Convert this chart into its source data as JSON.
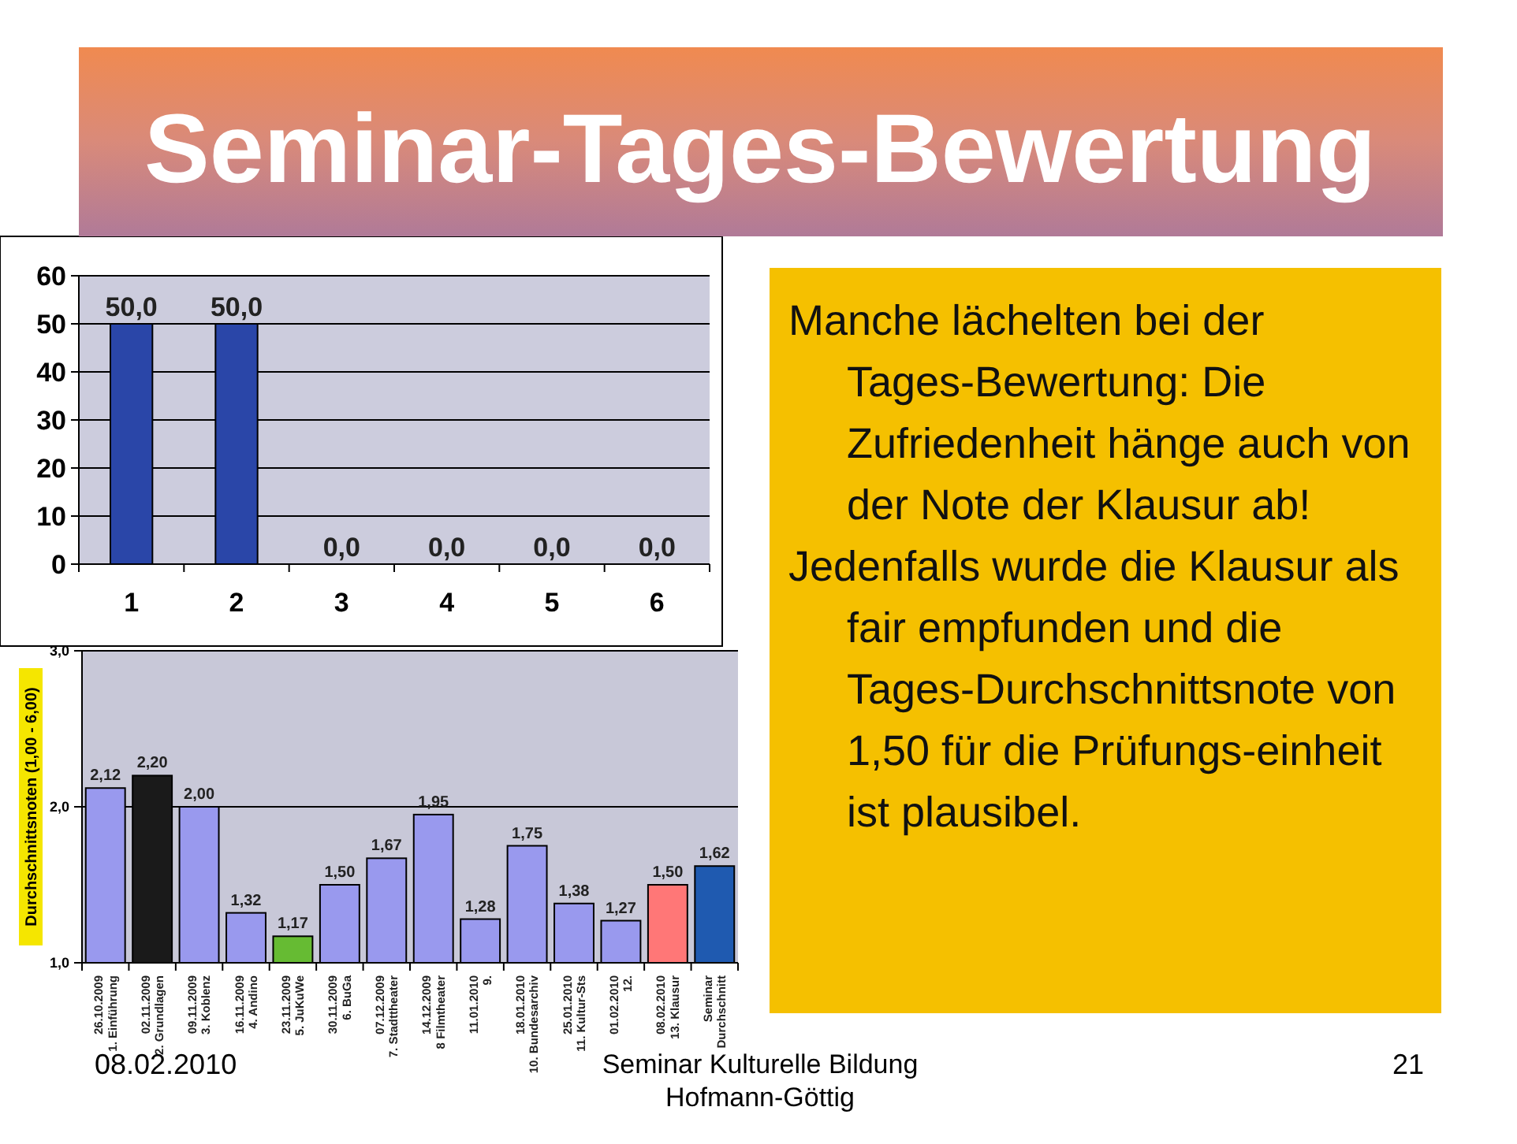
{
  "chart_data": [
    {
      "type": "bar",
      "categories": [
        "1",
        "2",
        "3",
        "4",
        "5",
        "6"
      ],
      "values": [
        50,
        50,
        0,
        0,
        0,
        0
      ],
      "color": "#2a46a8",
      "value_labels": [
        "50,0",
        "50,0",
        "0,0",
        "0,0",
        "0,0",
        "0,0"
      ],
      "ylim": [
        0,
        60
      ],
      "yticks": [
        0,
        10,
        20,
        30,
        40,
        50,
        60
      ],
      "grid": "y"
    },
    {
      "type": "bar",
      "ylabel": "Durchschnittsnoten (1,00 - 6,00)",
      "categories": [
        "26.10.2009\n1. Einführung",
        "02.11.2009\n2. Grundlagen",
        "09.11.2009\n3. Koblenz",
        "16.11.2009\n4. Andino",
        "23.11.2009\n5. JuKuWe",
        "30.11.2009\n6. BuGa",
        "07.12.2009\n7. Stadttheater",
        "14.12.2009\n8 Filmtheater",
        "11.01.2010\n9.",
        "18.01.2010\n10. Bundesarchiv",
        "25.01.2010\n11. Kultur-Sts",
        "01.02.2010\n12.",
        "08.02.2010\n13. Klausur",
        "Seminar\nDurchschnitt"
      ],
      "values": [
        2.12,
        2.2,
        2.0,
        1.32,
        1.17,
        1.5,
        1.67,
        1.95,
        1.28,
        1.75,
        1.38,
        1.27,
        1.5,
        1.62
      ],
      "colors": [
        "#9999ee",
        "#1a1a1a",
        "#9999ee",
        "#9999ee",
        "#66bb33",
        "#9999ee",
        "#9999ee",
        "#9999ee",
        "#9999ee",
        "#9999ee",
        "#9999ee",
        "#9999ee",
        "#ff7777",
        "#1f5ab0"
      ],
      "value_labels": [
        "2,12",
        "2,20",
        "2,00",
        "1,32",
        "1,17",
        "1,50",
        "1,67",
        "1,95",
        "1,28",
        "1,75",
        "1,38",
        "1,27",
        "1,50",
        "1,62"
      ],
      "ylim": [
        1,
        3
      ],
      "yticks": [
        {
          "value": 1,
          "label": "1,0"
        },
        {
          "value": 2,
          "label": "2,0"
        },
        {
          "value": 3,
          "label": "3,0"
        }
      ],
      "grid": "y"
    },
    {
      "type": "other",
      "title": "Seminar-Tages-Bewertung",
      "annotations": [
        "Manche lächelten bei der Tages-Bewertung: Die Zufriedenheit hänge auch von der Note der Klausur ab!",
        "Jedenfalls wurde die Klausur als fair empfunden und die Tages-Durchschnittsnote von 1,50 für die Prüfungs-einheit ist plausibel.",
        "08.02.2010",
        "Seminar Kulturelle Bildung\nHofmann-Göttig",
        "21"
      ]
    }
  ]
}
